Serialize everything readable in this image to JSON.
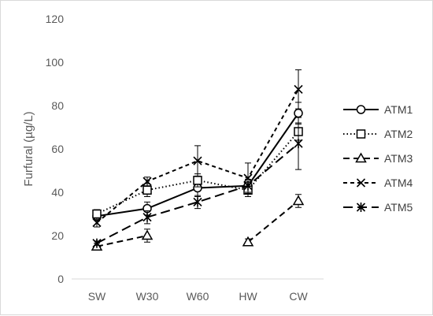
{
  "chart_data": {
    "type": "line",
    "title": "",
    "xlabel": "",
    "ylabel": "Furfural (µg/L)",
    "categories": [
      "SW",
      "W30",
      "W60",
      "HW",
      "CW"
    ],
    "ylim": [
      0,
      120
    ],
    "yticks": [
      0,
      20,
      40,
      60,
      80,
      100,
      120
    ],
    "grid": false,
    "legend": "right",
    "series": [
      {
        "name": "ATM1",
        "values": [
          29,
          32.5,
          42,
          43,
          76.5
        ],
        "errors": [
          2,
          3,
          4,
          3,
          5
        ],
        "marker": "circle",
        "dash": "solid",
        "color": "#000000"
      },
      {
        "name": "ATM2",
        "values": [
          30,
          41,
          45.5,
          41,
          68
        ],
        "errors": [
          2,
          3,
          3,
          3,
          4
        ],
        "marker": "square",
        "dash": "dotted",
        "color": "#000000"
      },
      {
        "name": "ATM3",
        "values": [
          15,
          20,
          null,
          17,
          36
        ],
        "errors": [
          1.5,
          3,
          0,
          1.5,
          3
        ],
        "marker": "triangle",
        "dash": "dashed",
        "color": "#000000"
      },
      {
        "name": "ATM4",
        "values": [
          26,
          45,
          54.5,
          46.5,
          87.5
        ],
        "errors": [
          2,
          2,
          7,
          7,
          9
        ],
        "marker": "x",
        "dash": "short-dash",
        "color": "#000000"
      },
      {
        "name": "ATM5",
        "values": [
          16.5,
          28.5,
          35.5,
          43,
          62.5
        ],
        "errors": [
          1,
          3,
          3,
          3,
          12
        ],
        "marker": "star",
        "dash": "long-dash",
        "color": "#000000"
      }
    ]
  }
}
